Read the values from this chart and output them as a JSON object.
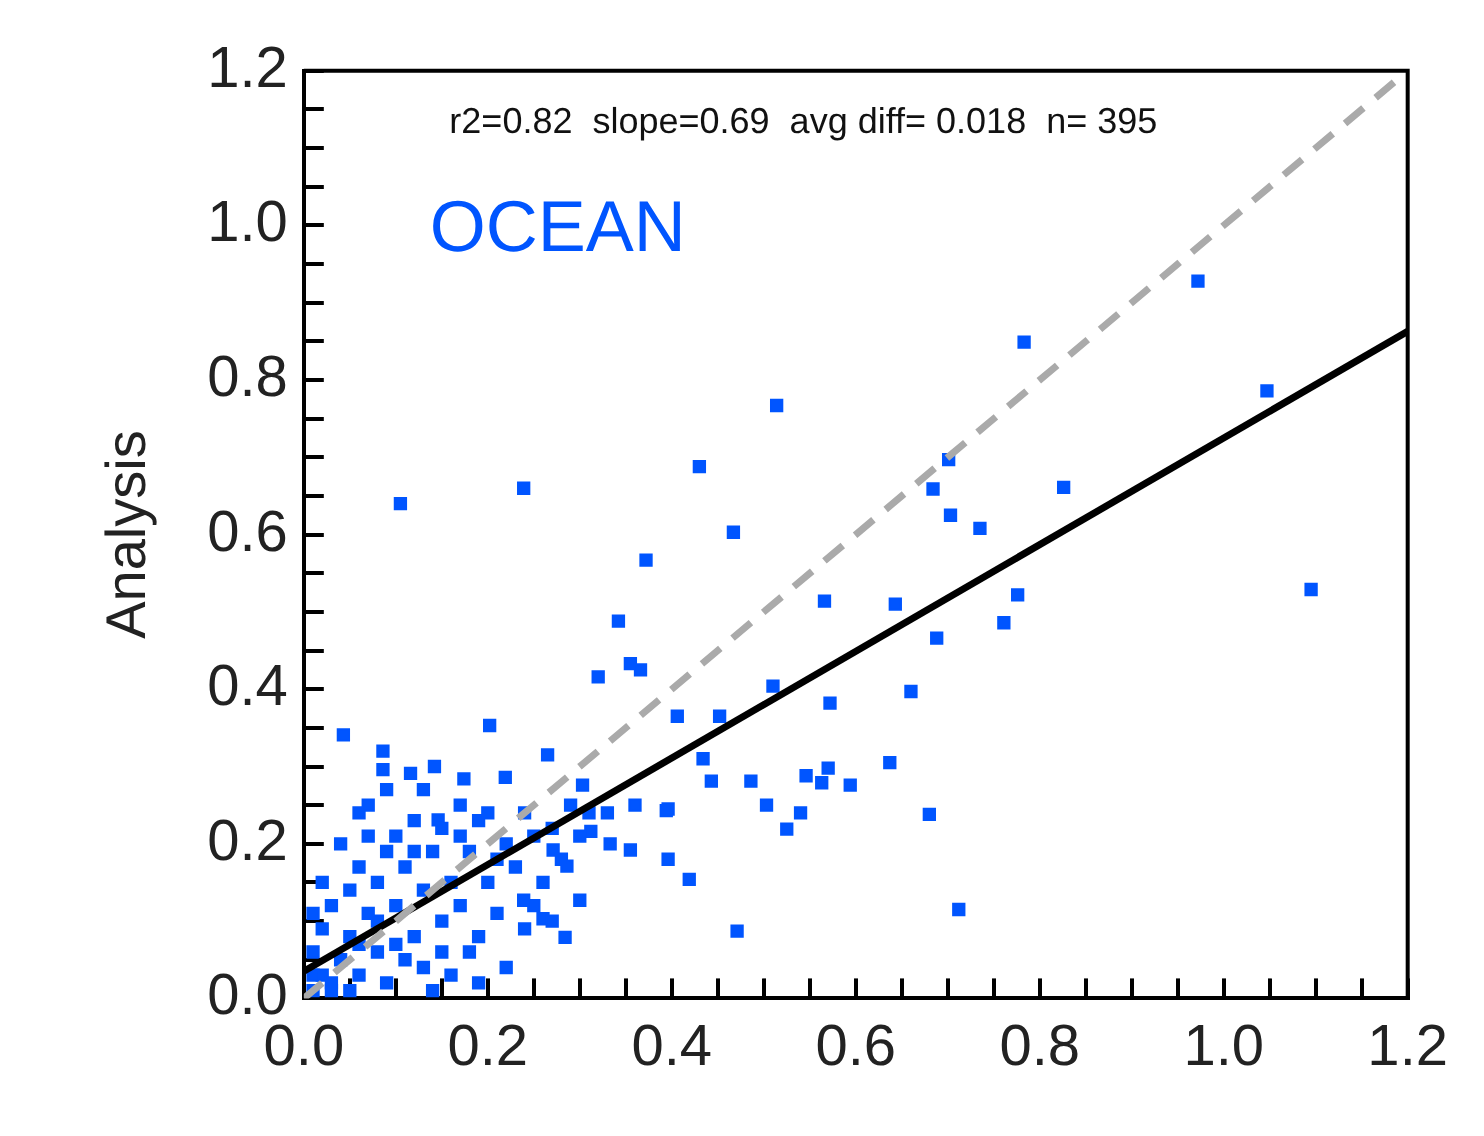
{
  "chart_data": {
    "type": "scatter",
    "ylabel": "Analysis",
    "annotations": [
      "r2=0.82  slope=0.69  avg diff= 0.018  n= 395",
      "OCEAN"
    ],
    "xlim": [
      0,
      1.2
    ],
    "ylim": [
      0,
      1.2
    ],
    "xticks": [
      {
        "value": 0,
        "label": "0.0"
      },
      {
        "value": 0.05,
        "label": null
      },
      {
        "value": 0.1,
        "label": null
      },
      {
        "value": 0.15,
        "label": null
      },
      {
        "value": 0.2,
        "label": "0.2"
      },
      {
        "value": 0.25,
        "label": null
      },
      {
        "value": 0.3,
        "label": null
      },
      {
        "value": 0.35,
        "label": null
      },
      {
        "value": 0.4,
        "label": "0.4"
      },
      {
        "value": 0.45,
        "label": null
      },
      {
        "value": 0.5,
        "label": null
      },
      {
        "value": 0.55,
        "label": null
      },
      {
        "value": 0.6,
        "label": "0.6"
      },
      {
        "value": 0.65,
        "label": null
      },
      {
        "value": 0.7,
        "label": null
      },
      {
        "value": 0.75,
        "label": null
      },
      {
        "value": 0.8,
        "label": "0.8"
      },
      {
        "value": 0.85,
        "label": null
      },
      {
        "value": 0.9,
        "label": null
      },
      {
        "value": 0.95,
        "label": null
      },
      {
        "value": 1,
        "label": "1.0"
      },
      {
        "value": 1.05,
        "label": null
      },
      {
        "value": 1.1,
        "label": null
      },
      {
        "value": 1.15,
        "label": null
      },
      {
        "value": 1.2,
        "label": "1.2"
      }
    ],
    "yticks": [
      {
        "value": 0,
        "label": "0.0"
      },
      {
        "value": 0.05,
        "label": null
      },
      {
        "value": 0.1,
        "label": null
      },
      {
        "value": 0.15,
        "label": null
      },
      {
        "value": 0.2,
        "label": "0.2"
      },
      {
        "value": 0.25,
        "label": null
      },
      {
        "value": 0.3,
        "label": null
      },
      {
        "value": 0.35,
        "label": null
      },
      {
        "value": 0.4,
        "label": "0.4"
      },
      {
        "value": 0.45,
        "label": null
      },
      {
        "value": 0.5,
        "label": null
      },
      {
        "value": 0.55,
        "label": null
      },
      {
        "value": 0.6,
        "label": "0.6"
      },
      {
        "value": 0.65,
        "label": null
      },
      {
        "value": 0.7,
        "label": null
      },
      {
        "value": 0.75,
        "label": null
      },
      {
        "value": 0.8,
        "label": "0.8"
      },
      {
        "value": 0.85,
        "label": null
      },
      {
        "value": 0.9,
        "label": null
      },
      {
        "value": 0.95,
        "label": null
      },
      {
        "value": 1,
        "label": "1.0"
      },
      {
        "value": 1.05,
        "label": null
      },
      {
        "value": 1.1,
        "label": null
      },
      {
        "value": 1.15,
        "label": null
      },
      {
        "value": 1.2,
        "label": "1.2"
      }
    ],
    "grid": false,
    "legend": false,
    "series": [
      {
        "marker": "square",
        "color": "#0055ff",
        "x": [
          0.105,
          0.239,
          0.514,
          0.43,
          0.467,
          0.372,
          0.566,
          0.342,
          0.355,
          0.366,
          0.32,
          0.972,
          0.783,
          1.047,
          0.701,
          0.684,
          0.703,
          0.735,
          0.826,
          0.643,
          0.776,
          0.761,
          0.688,
          1.095,
          0.51,
          0.572,
          0.66,
          0.406,
          0.452,
          0.434,
          0.443,
          0.486,
          0.546,
          0.57,
          0.563,
          0.594,
          0.637,
          0.503,
          0.54,
          0.525,
          0.68,
          0.396,
          0.396,
          0.419,
          0.471,
          0.712,
          0.043,
          0.086,
          0.086,
          0.116,
          0.142,
          0.202,
          0.174,
          0.219,
          0.265,
          0.303,
          0.394,
          0.284,
          0.239,
          0.26,
          0.3,
          0.333,
          0.355,
          0.312,
          0.271,
          0.286,
          0.06,
          0.146,
          0.01,
          0.02,
          0.01,
          0.03,
          0.04,
          0.02,
          0.05,
          0.06,
          0.03,
          0.05,
          0.07,
          0.08,
          0.06,
          0.08,
          0.09,
          0.1,
          0.1,
          0.11,
          0.12,
          0.12,
          0.13,
          0.14,
          0.09,
          0.13,
          0.15,
          0.15,
          0.16,
          0.17,
          0.18,
          0.18,
          0.19,
          0.2,
          0.21,
          0.22,
          0.23,
          0.24,
          0.25,
          0.26,
          0.27,
          0.28,
          0.29,
          0.3,
          0.31,
          0.33,
          0.36,
          0.2,
          0.17,
          0.07,
          0.04,
          0.02,
          0.11,
          0.14,
          0.16,
          0.19,
          0.22,
          0.24,
          0.01,
          0.07,
          0.13,
          0.09,
          0.03,
          0.05,
          0.08,
          0.12,
          0.17,
          0.21,
          0.25,
          0.27,
          0.19,
          0.15,
          0.1,
          0.06,
          0.01
        ],
        "values": [
          0.64,
          0.66,
          0.767,
          0.688,
          0.603,
          0.567,
          0.514,
          0.488,
          0.433,
          0.425,
          0.416,
          0.928,
          0.849,
          0.786,
          0.697,
          0.659,
          0.625,
          0.608,
          0.661,
          0.51,
          0.522,
          0.486,
          0.466,
          0.529,
          0.404,
          0.382,
          0.397,
          0.365,
          0.365,
          0.31,
          0.281,
          0.281,
          0.288,
          0.298,
          0.279,
          0.276,
          0.305,
          0.25,
          0.24,
          0.219,
          0.238,
          0.245,
          0.18,
          0.154,
          0.087,
          0.115,
          0.341,
          0.32,
          0.296,
          0.291,
          0.3,
          0.353,
          0.284,
          0.286,
          0.315,
          0.276,
          0.243,
          0.079,
          0.127,
          0.103,
          0.127,
          0.2,
          0.192,
          0.216,
          0.192,
          0.171,
          0.24,
          0.231,
          0.01,
          0.03,
          0.06,
          0.02,
          0.05,
          0.09,
          0.08,
          0.03,
          0.12,
          0.14,
          0.11,
          0.06,
          0.17,
          0.15,
          0.19,
          0.12,
          0.21,
          0.17,
          0.08,
          0.23,
          0.14,
          0.19,
          0.02,
          0.04,
          0.1,
          0.22,
          0.15,
          0.12,
          0.19,
          0.06,
          0.23,
          0.15,
          0.11,
          0.2,
          0.17,
          0.24,
          0.21,
          0.15,
          0.22,
          0.18,
          0.25,
          0.21,
          0.24,
          0.24,
          0.25,
          0.24,
          0.25,
          0.25,
          0.2,
          0.15,
          0.05,
          0.01,
          0.03,
          0.02,
          0.04,
          0.09,
          0.11,
          0.21,
          0.27,
          0.27,
          0.01,
          0.01,
          0.1,
          0.19,
          0.21,
          0.18,
          0.12,
          0.1,
          0.08,
          0.06,
          0.07,
          0.07,
          0.03
        ]
      },
      {
        "type": "line",
        "color": "#aaaaaa",
        "line_style": "dashed",
        "marker": "none",
        "x": [
          0,
          1.2
        ],
        "values": [
          0,
          1.2
        ]
      },
      {
        "type": "line",
        "color": "#000000",
        "line_style": "solid",
        "marker": "none",
        "x": [
          0,
          1.2
        ],
        "values": [
          0.035,
          0.863
        ]
      }
    ]
  }
}
